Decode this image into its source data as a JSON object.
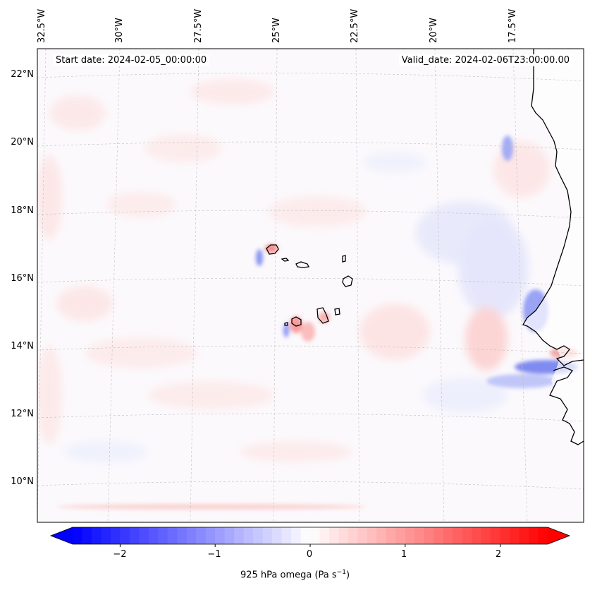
{
  "map": {
    "start_date": "Start date: 2024-02-05_00:00:00",
    "valid_date": "Valid_date: 2024-02-06T23:00:00.00",
    "lon_labels": [
      "32.5°W",
      "30°W",
      "27.5°W",
      "25°W",
      "22.5°W",
      "20°W",
      "17.5°W"
    ],
    "lat_labels": [
      "22°N",
      "20°N",
      "18°N",
      "16°N",
      "14°N",
      "12°N",
      "10°N"
    ],
    "lon_extent": [
      -33.0,
      -15.8
    ],
    "lat_extent": [
      8.9,
      22.8
    ]
  },
  "colorbar": {
    "title_main": "925 hPa omega (Pa s",
    "title_sup": "−1",
    "title_end": ")",
    "ticks": [
      "−2",
      "−1",
      "0",
      "1",
      "2"
    ],
    "tick_values": [
      -2,
      -1,
      0,
      1,
      2
    ],
    "range": [
      -2.5,
      2.5
    ],
    "colormap": "bwr",
    "negative_color": "#0000ff",
    "zero_color": "#ffffff",
    "positive_color": "#ff0000"
  }
}
